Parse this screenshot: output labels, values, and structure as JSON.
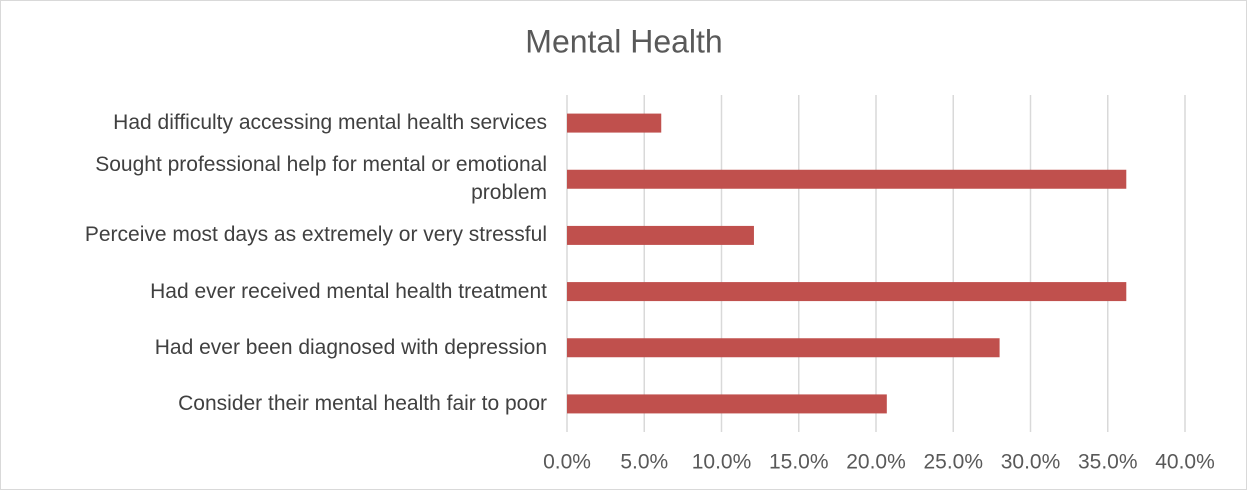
{
  "chart_data": {
    "type": "bar",
    "orientation": "horizontal",
    "title": "Mental Health",
    "categories": [
      "Had difficulty accessing mental health services",
      "Sought professional help for mental or emotional problem",
      "Perceive most days as extremely or very stressful",
      "Had ever received mental health treatment",
      "Had ever been diagnosed with depression",
      "Consider their mental health fair to poor"
    ],
    "values": [
      6.1,
      36.2,
      12.1,
      36.2,
      28.0,
      20.7
    ],
    "color": "#c0504d",
    "xlim": [
      0,
      40
    ],
    "xticks": [
      {
        "value": 0,
        "label": "0.0%"
      },
      {
        "value": 5,
        "label": "5.0%"
      },
      {
        "value": 10,
        "label": "10.0%"
      },
      {
        "value": 15,
        "label": "15.0%"
      },
      {
        "value": 20,
        "label": "20.0%"
      },
      {
        "value": 25,
        "label": "25.0%"
      },
      {
        "value": 30,
        "label": "30.0%"
      },
      {
        "value": 35,
        "label": "35.0%"
      },
      {
        "value": 40,
        "label": "40.0%"
      }
    ],
    "grid": true
  }
}
